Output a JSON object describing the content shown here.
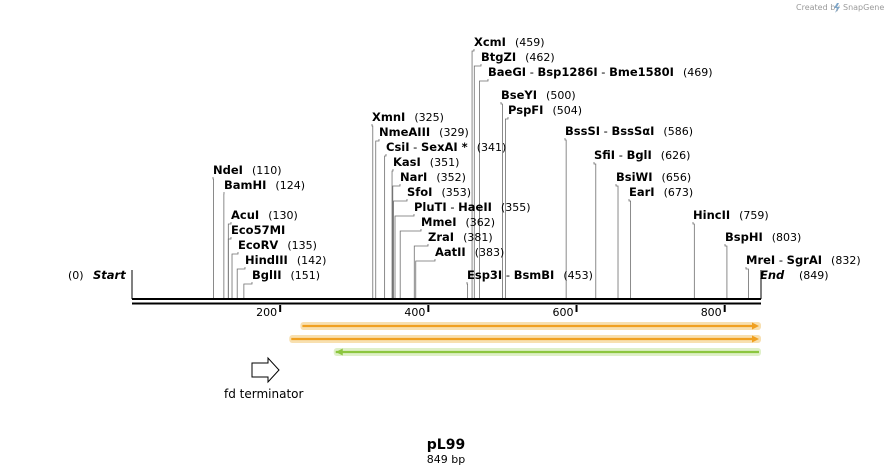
{
  "credit": "Created by",
  "brand": "SnapGene",
  "map": {
    "name": "pL99",
    "length_label": "849 bp",
    "start_label": "Start",
    "start_pos": "(0)",
    "end_label": "End",
    "end_pos": "(849)",
    "total_bp": 849
  },
  "ticks": [
    {
      "label": "200",
      "bp": 200
    },
    {
      "label": "400",
      "bp": 400
    },
    {
      "label": "600",
      "bp": 600
    },
    {
      "label": "800",
      "bp": 800
    }
  ],
  "sites": [
    {
      "names": [
        "NdeI"
      ],
      "pos": "(110)",
      "bp": 110
    },
    {
      "names": [
        "BamHI"
      ],
      "pos": "(124)",
      "bp": 124
    },
    {
      "names": [
        "AcuI"
      ],
      "pos": "(130)",
      "bp": 130
    },
    {
      "names": [
        "Eco57MI"
      ],
      "pos": "",
      "bp": 130
    },
    {
      "names": [
        "EcoRV"
      ],
      "pos": "(135)",
      "bp": 135
    },
    {
      "names": [
        "HindIII"
      ],
      "pos": "(142)",
      "bp": 142
    },
    {
      "names": [
        "BglII"
      ],
      "pos": "(151)",
      "bp": 151
    },
    {
      "names": [
        "XmnI"
      ],
      "pos": "(325)",
      "bp": 325
    },
    {
      "names": [
        "NmeAIII"
      ],
      "pos": "(329)",
      "bp": 329
    },
    {
      "names": [
        "CsiI",
        "SexAI *"
      ],
      "pos": "(341)",
      "bp": 341
    },
    {
      "names": [
        "KasI"
      ],
      "pos": "(351)",
      "bp": 351
    },
    {
      "names": [
        "NarI"
      ],
      "pos": "(352)",
      "bp": 352
    },
    {
      "names": [
        "SfoI"
      ],
      "pos": "(353)",
      "bp": 353
    },
    {
      "names": [
        "PluTI",
        "HaeII"
      ],
      "pos": "(355)",
      "bp": 355
    },
    {
      "names": [
        "MmeI"
      ],
      "pos": "(362)",
      "bp": 362
    },
    {
      "names": [
        "ZraI"
      ],
      "pos": "(381)",
      "bp": 381
    },
    {
      "names": [
        "AatII"
      ],
      "pos": "(383)",
      "bp": 383
    },
    {
      "names": [
        "Esp3I",
        "BsmBI"
      ],
      "pos": "(453)",
      "bp": 453
    },
    {
      "names": [
        "XcmI"
      ],
      "pos": "(459)",
      "bp": 459
    },
    {
      "names": [
        "BtgZI"
      ],
      "pos": "(462)",
      "bp": 462
    },
    {
      "names": [
        "BaeGI",
        "Bsp1286I",
        "Bme1580I"
      ],
      "pos": "(469)",
      "bp": 469
    },
    {
      "names": [
        "BseYI"
      ],
      "pos": "(500)",
      "bp": 500
    },
    {
      "names": [
        "PspFI"
      ],
      "pos": "(504)",
      "bp": 504
    },
    {
      "names": [
        "BssSI",
        "BssSαI"
      ],
      "pos": "(586)",
      "bp": 586
    },
    {
      "names": [
        "SfiI",
        "BglI"
      ],
      "pos": "(626)",
      "bp": 626
    },
    {
      "names": [
        "BsiWI"
      ],
      "pos": "(656)",
      "bp": 656
    },
    {
      "names": [
        "EarI"
      ],
      "pos": "(673)",
      "bp": 673
    },
    {
      "names": [
        "HincII"
      ],
      "pos": "(759)",
      "bp": 759
    },
    {
      "names": [
        "BspHI"
      ],
      "pos": "(803)",
      "bp": 803
    },
    {
      "names": [
        "MreI",
        "SgrAI"
      ],
      "pos": "(832)",
      "bp": 832
    }
  ],
  "features": [
    {
      "name": "fd terminator",
      "type": "terminator",
      "start_bp": 162,
      "end_bp": 200,
      "direction": "forward"
    }
  ],
  "orfs": [
    {
      "start_bp": 230,
      "end_bp": 849,
      "direction": "forward",
      "color": "#f0a020"
    },
    {
      "start_bp": 215,
      "end_bp": 849,
      "direction": "forward",
      "color": "#f0a020"
    },
    {
      "start_bp": 275,
      "end_bp": 849,
      "direction": "reverse",
      "color": "#8cc63f"
    }
  ],
  "colors": {
    "backbone": "#000000",
    "orf_fill": "#f0a020",
    "orf_glow": "#f8e0b0",
    "orf_rev_fill": "#8cc63f",
    "orf_rev_glow": "#dff0c8",
    "credit": "#9a9a9a",
    "snapgene_logo": "#7fa6c8"
  }
}
